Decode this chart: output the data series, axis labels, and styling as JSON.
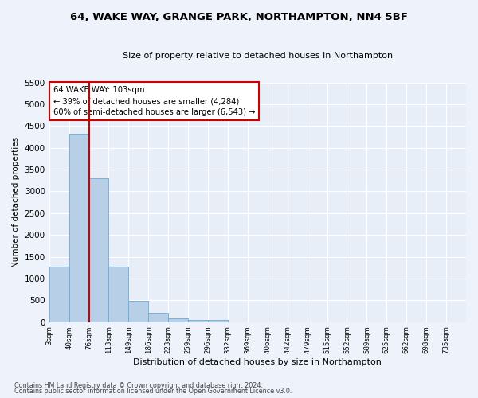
{
  "title1": "64, WAKE WAY, GRANGE PARK, NORTHAMPTON, NN4 5BF",
  "title2": "Size of property relative to detached houses in Northampton",
  "xlabel": "Distribution of detached houses by size in Northampton",
  "ylabel": "Number of detached properties",
  "bar_values": [
    1270,
    4330,
    3300,
    1280,
    490,
    215,
    90,
    55,
    55,
    0,
    0,
    0,
    0,
    0,
    0,
    0,
    0,
    0,
    0,
    0,
    0
  ],
  "bar_labels": [
    "3sqm",
    "40sqm",
    "76sqm",
    "113sqm",
    "149sqm",
    "186sqm",
    "223sqm",
    "259sqm",
    "296sqm",
    "332sqm",
    "369sqm",
    "406sqm",
    "442sqm",
    "479sqm",
    "515sqm",
    "552sqm",
    "589sqm",
    "625sqm",
    "662sqm",
    "698sqm",
    "735sqm"
  ],
  "bar_color": "#b8cfe8",
  "bar_edge_color": "#6aaad4",
  "plot_bg": "#e8eef8",
  "fig_bg": "#eef2fb",
  "grid_color": "#ffffff",
  "ylim": [
    0,
    5500
  ],
  "yticks": [
    0,
    500,
    1000,
    1500,
    2000,
    2500,
    3000,
    3500,
    4000,
    4500,
    5000,
    5500
  ],
  "vline_color": "#cc0000",
  "vline_x_index": 2,
  "annotation_title": "64 WAKE WAY: 103sqm",
  "annotation_line1": "← 39% of detached houses are smaller (4,284)",
  "annotation_line2": "60% of semi-detached houses are larger (6,543) →",
  "footnote1": "Contains HM Land Registry data © Crown copyright and database right 2024.",
  "footnote2": "Contains public sector information licensed under the Open Government Licence v3.0."
}
